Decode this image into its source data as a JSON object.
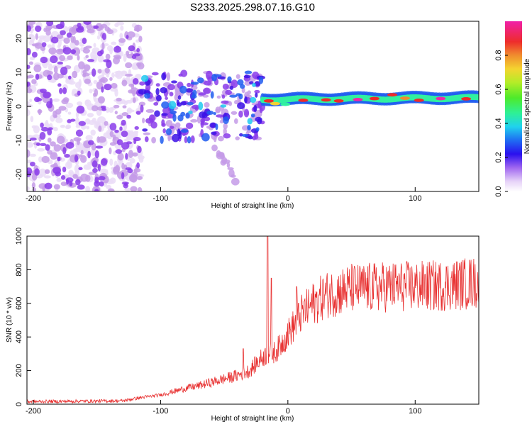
{
  "colors": {
    "trace": "#e83232",
    "frame": "#000000",
    "background": "#ffffff",
    "colormap": [
      "#eadcf7",
      "#c49be8",
      "#8a3cea",
      "#3b10e6",
      "#1e5cf0",
      "#20c9f0",
      "#31f0a0",
      "#4fea2a",
      "#b8ec28",
      "#f4d232",
      "#f08a2e",
      "#ee2a2a",
      "#f026a8"
    ]
  },
  "chart_data": [
    {
      "type": "heatmap",
      "title": "S233.2025.298.07.16.G10",
      "xlabel": "Height of straight line (km)",
      "ylabel": "Frequency (Hz)",
      "xlim": [
        -205,
        150
      ],
      "ylim": [
        -25,
        25
      ],
      "xticks": [
        -200,
        -100,
        0,
        100
      ],
      "yticks": [
        -20,
        -10,
        0,
        10,
        20
      ],
      "colorbar": {
        "label": "Normalized spectral amplitude",
        "range": [
          0,
          1
        ],
        "ticks": [
          0.0,
          0.2,
          0.4,
          0.6,
          0.8
        ]
      },
      "regions": [
        {
          "name": "diffuse noise",
          "x_range": [
            -205,
            -115
          ],
          "f_range": [
            -25,
            25
          ],
          "amplitude": [
            0.0,
            0.2
          ]
        },
        {
          "name": "scattered patches",
          "x_range": [
            -115,
            -20
          ],
          "f_range": [
            -10,
            10
          ],
          "amplitude": [
            0.1,
            0.4
          ]
        },
        {
          "name": "faint branch",
          "x_range": [
            -60,
            -40
          ],
          "f_range": [
            -22,
            -10
          ],
          "amplitude": [
            0.05,
            0.15
          ]
        },
        {
          "name": "coherent signal line",
          "x_range": [
            -20,
            150
          ],
          "f_center": [
            2,
            2.5
          ],
          "amplitude": [
            0.4,
            1.0
          ]
        }
      ]
    },
    {
      "type": "line",
      "xlabel": "Height of straight line (km)",
      "ylabel": "SNR (10 * v/v)",
      "xlim": [
        -205,
        150
      ],
      "ylim": [
        0,
        1000
      ],
      "xticks": [
        -200,
        -100,
        0,
        100
      ],
      "yticks": [
        0,
        200,
        400,
        600,
        800,
        1000
      ],
      "series": [
        {
          "name": "SNR",
          "envelope_x": [
            -205,
            -130,
            -115,
            -100,
            -90,
            -80,
            -70,
            -60,
            -50,
            -40,
            -30,
            -20,
            -15,
            -10,
            -5,
            0,
            5,
            10,
            20,
            30,
            40,
            50,
            60,
            80,
            100,
            120,
            150
          ],
          "envelope_y": [
            15,
            20,
            40,
            55,
            75,
            95,
            110,
            130,
            150,
            170,
            200,
            280,
            300,
            310,
            360,
            420,
            470,
            530,
            600,
            650,
            670,
            690,
            690,
            700,
            700,
            705,
            725
          ],
          "spikes": [
            {
              "x": -16,
              "y": 1000
            },
            {
              "x": -13,
              "y": 750
            },
            {
              "x": 7,
              "y": 700
            },
            {
              "x": -35,
              "y": 330
            }
          ]
        }
      ]
    }
  ]
}
